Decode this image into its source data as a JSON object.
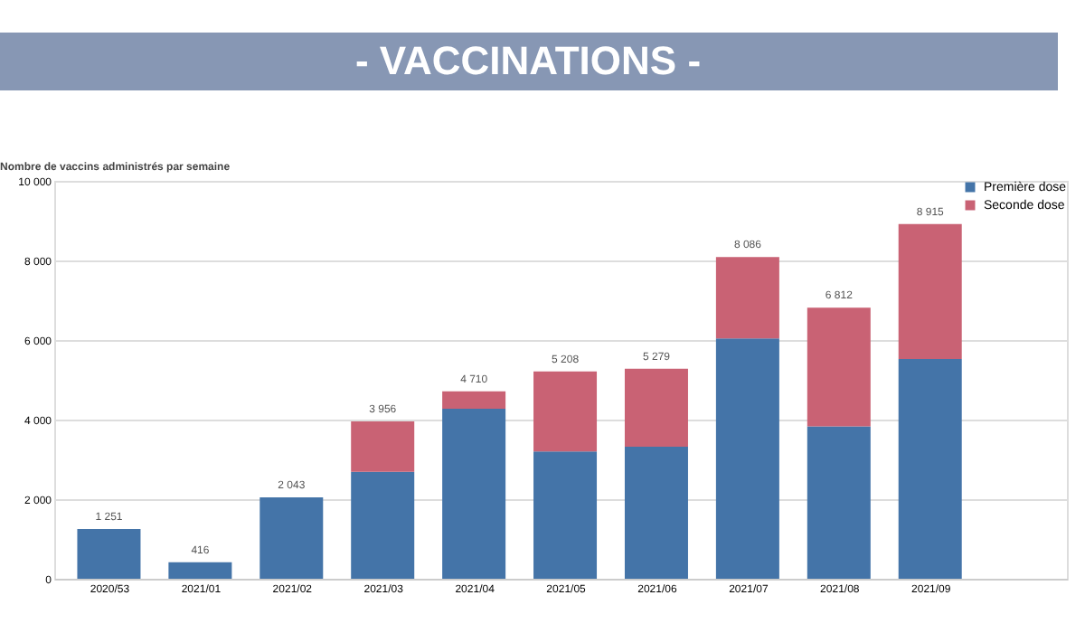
{
  "chart_data": {
    "type": "bar",
    "title": "- VACCINATIONS -",
    "subtitle": "Nombre de vaccins administrés par semaine",
    "categories": [
      "2020/53",
      "2021/01",
      "2021/02",
      "2021/03",
      "2021/04",
      "2021/05",
      "2021/06",
      "2021/07",
      "2021/08",
      "2021/09"
    ],
    "series": [
      {
        "name": "Première dose",
        "color": "#4474a8",
        "values": [
          1251,
          416,
          2043,
          2690,
          4270,
          3200,
          3320,
          6040,
          3830,
          5520
        ]
      },
      {
        "name": "Seconde dose",
        "color": "#c96274",
        "values": [
          null,
          null,
          null,
          1266,
          440,
          2008,
          1959,
          2046,
          2982,
          3395
        ]
      }
    ],
    "stacked": true,
    "totals": [
      "1 251",
      "416",
      "2 043",
      "3 956",
      "4 710",
      "5 208",
      "5 279",
      "8 086",
      "6 812",
      "8 915"
    ],
    "ylim": [
      0,
      10000
    ],
    "yticks": [
      0,
      {
        "value": 2000,
        "label": "2 000"
      },
      {
        "value": 4000,
        "label": "4 000"
      },
      {
        "value": 6000,
        "label": "6 000"
      },
      {
        "value": 8000,
        "label": "8 000"
      },
      {
        "value": 10000,
        "label": "10 000"
      }
    ],
    "grid": "y",
    "legend": "top right"
  }
}
